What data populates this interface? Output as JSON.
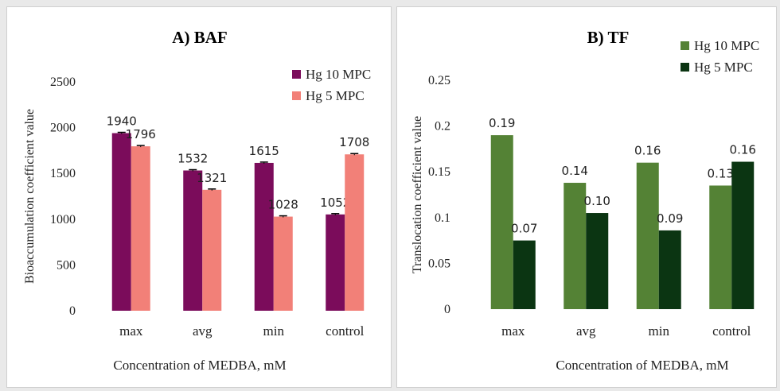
{
  "charts": [
    {
      "id": "a",
      "title": "A) BAF",
      "ylabel": "Bioaccumulation coefficient value",
      "xlabel": "Concentration of MEDBA, mM",
      "type": "bar",
      "categories": [
        "max",
        "avg",
        "min",
        "control"
      ],
      "ylim": [
        0,
        2500
      ],
      "yticks": [
        "0",
        "500",
        "1000",
        "1500",
        "2000",
        "2500"
      ],
      "yticks_values": [
        0,
        500,
        1000,
        1500,
        2000,
        2500
      ],
      "error_bars": true,
      "series": [
        {
          "name": "Hg 10 MPC",
          "color": "#7b0c5b",
          "values": [
            1940,
            1532,
            1615,
            1052
          ],
          "labels": [
            "1940",
            "1532",
            "1615",
            "1052"
          ]
        },
        {
          "name": "Hg 5 MPC",
          "color": "#f28078",
          "values": [
            1796,
            1321,
            1028,
            1708
          ],
          "labels": [
            "1796",
            "1321",
            "1028",
            "1708"
          ]
        }
      ]
    },
    {
      "id": "b",
      "title": "B) TF",
      "ylabel": "Translocation coefficient value",
      "xlabel": "Concentration of MEDBA, mM",
      "type": "bar",
      "categories": [
        "max",
        "avg",
        "min",
        "control"
      ],
      "ylim": [
        0,
        0.25
      ],
      "yticks": [
        "0",
        "0.05",
        "0.1",
        "0.15",
        "0.2",
        "0.25"
      ],
      "yticks_values": [
        0,
        0.05,
        0.1,
        0.15,
        0.2,
        0.25
      ],
      "error_bars": false,
      "series": [
        {
          "name": "Hg 10 MPC",
          "color": "#548235",
          "values": [
            0.19,
            0.138,
            0.16,
            0.135
          ],
          "labels": [
            "0.19",
            "0.14",
            "0.16",
            "0.13"
          ]
        },
        {
          "name": "Hg 5 MPC",
          "color": "#0b3512",
          "values": [
            0.075,
            0.105,
            0.086,
            0.161
          ],
          "labels": [
            "0.07",
            "0.10",
            "0.09",
            "0.16"
          ]
        }
      ]
    }
  ]
}
